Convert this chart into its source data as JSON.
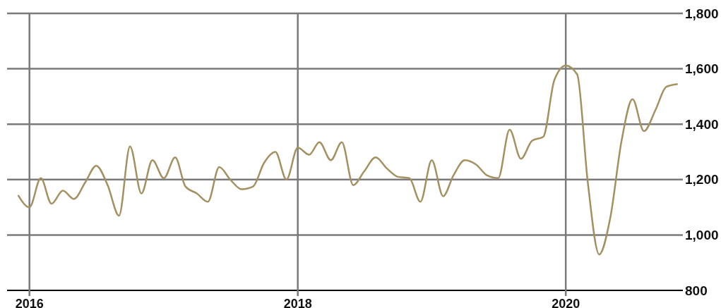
{
  "chart_data": {
    "type": "line",
    "x": [
      "2015-12",
      "2016-01",
      "2016-02",
      "2016-03",
      "2016-04",
      "2016-05",
      "2016-06",
      "2016-07",
      "2016-08",
      "2016-09",
      "2016-10",
      "2016-11",
      "2016-12",
      "2017-01",
      "2017-02",
      "2017-03",
      "2017-04",
      "2017-05",
      "2017-06",
      "2017-07",
      "2017-08",
      "2017-09",
      "2017-10",
      "2017-11",
      "2017-12",
      "2018-01",
      "2018-02",
      "2018-03",
      "2018-04",
      "2018-05",
      "2018-06",
      "2018-07",
      "2018-08",
      "2018-09",
      "2018-10",
      "2018-11",
      "2018-12",
      "2019-01",
      "2019-02",
      "2019-03",
      "2019-04",
      "2019-05",
      "2019-06",
      "2019-07",
      "2019-08",
      "2019-09",
      "2019-10",
      "2019-11",
      "2019-12",
      "2020-01",
      "2020-02",
      "2020-03",
      "2020-04",
      "2020-05",
      "2020-06",
      "2020-07",
      "2020-08",
      "2020-09",
      "2020-10",
      "2020-11"
    ],
    "series": [
      {
        "color": "#a39161",
        "values": [
          1144,
          1100,
          1205,
          1113,
          1160,
          1130,
          1190,
          1250,
          1180,
          1070,
          1320,
          1150,
          1270,
          1205,
          1280,
          1175,
          1150,
          1120,
          1245,
          1200,
          1165,
          1175,
          1260,
          1300,
          1200,
          1315,
          1290,
          1335,
          1270,
          1335,
          1180,
          1230,
          1280,
          1240,
          1210,
          1205,
          1120,
          1270,
          1140,
          1215,
          1270,
          1255,
          1215,
          1205,
          1380,
          1275,
          1340,
          1355,
          1560,
          1612,
          1580,
          1190,
          930,
          1060,
          1340,
          1490,
          1375,
          1450,
          1535,
          1545
        ]
      }
    ],
    "xlim": [
      "2015-11",
      "2020-11-15"
    ],
    "xticks": [
      "2016",
      "2018",
      "2020"
    ],
    "ylim": [
      800,
      1800
    ],
    "yticks": [
      800,
      {
        "value": 1000,
        "label": "1,000"
      },
      {
        "value": 1200,
        "label": "1,200"
      },
      {
        "value": 1400,
        "label": "1,400"
      },
      {
        "value": 1600,
        "label": "1,600"
      },
      {
        "value": 1800,
        "label": "1,800"
      }
    ],
    "grid": true,
    "line_style": "solid",
    "marker": "none"
  }
}
